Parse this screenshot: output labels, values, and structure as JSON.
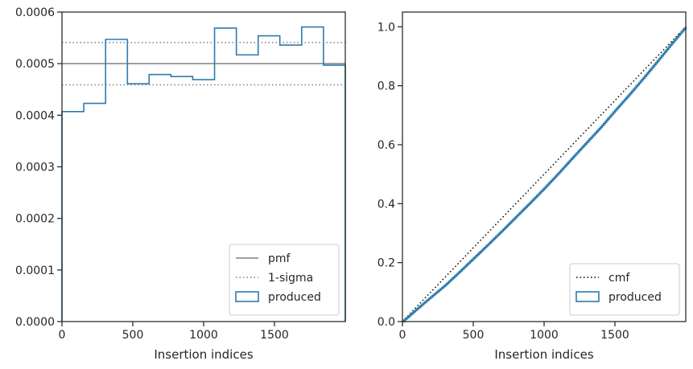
{
  "chart_data": [
    {
      "type": "line",
      "panel": "left",
      "title": "",
      "xlabel": "Insertion indices",
      "ylabel": "",
      "xlim": [
        0,
        2000
      ],
      "ylim": [
        0,
        0.0006
      ],
      "grid": false,
      "legend_placement": "bottom-right",
      "x_ticks": [
        0,
        500,
        1000,
        1500
      ],
      "x_tick_labels": [
        "0",
        "500",
        "1000",
        "1500"
      ],
      "y_ticks": [
        0,
        0.0001,
        0.0002,
        0.0003,
        0.0004,
        0.0005,
        0.0006
      ],
      "y_tick_labels": [
        "0.0000",
        "0.0001",
        "0.0002",
        "0.0003",
        "0.0004",
        "0.0005",
        "0.0006"
      ],
      "legend": [
        "pmf",
        "1-sigma",
        "produced"
      ],
      "pmf": 0.0005,
      "sigma_band": [
        0.000459,
        0.000541
      ],
      "produced": {
        "edges": [
          0,
          154,
          308,
          462,
          615,
          769,
          923,
          1077,
          1231,
          1385,
          1538,
          1692,
          1846,
          2000
        ],
        "values": [
          0.000407,
          0.000423,
          0.000547,
          0.000461,
          0.000479,
          0.000475,
          0.000469,
          0.000569,
          0.000517,
          0.000554,
          0.000536,
          0.000571,
          0.000497
        ]
      },
      "colors": {
        "pmf": "#808080",
        "sigma": "#808080",
        "produced": "#2e7bad"
      }
    },
    {
      "type": "line",
      "panel": "right",
      "title": "",
      "xlabel": "Insertion indices",
      "ylabel": "",
      "xlim": [
        0,
        2000
      ],
      "ylim": [
        0,
        1.05
      ],
      "grid": false,
      "legend_placement": "bottom-right",
      "x_ticks": [
        0,
        500,
        1000,
        1500
      ],
      "x_tick_labels": [
        "0",
        "500",
        "1000",
        "1500"
      ],
      "y_ticks": [
        0,
        0.2,
        0.4,
        0.6,
        0.8,
        1.0
      ],
      "y_tick_labels": [
        "0.0",
        "0.2",
        "0.4",
        "0.6",
        "0.8",
        "1.0"
      ],
      "legend": [
        "cmf",
        "produced"
      ],
      "cmf": {
        "x": [
          0,
          2000
        ],
        "y": [
          0,
          1.0
        ]
      },
      "produced": {
        "x": [
          0,
          100,
          200,
          300,
          400,
          500,
          600,
          700,
          800,
          900,
          1000,
          1100,
          1200,
          1300,
          1400,
          1500,
          1600,
          1700,
          1800,
          1900,
          2000
        ],
        "y": [
          0,
          0.042,
          0.083,
          0.123,
          0.168,
          0.214,
          0.26,
          0.307,
          0.355,
          0.403,
          0.452,
          0.503,
          0.556,
          0.608,
          0.66,
          0.716,
          0.77,
          0.826,
          0.884,
          0.943,
          1.0
        ]
      },
      "colors": {
        "cmf": "#000000",
        "produced": "#2e7bad"
      }
    }
  ]
}
